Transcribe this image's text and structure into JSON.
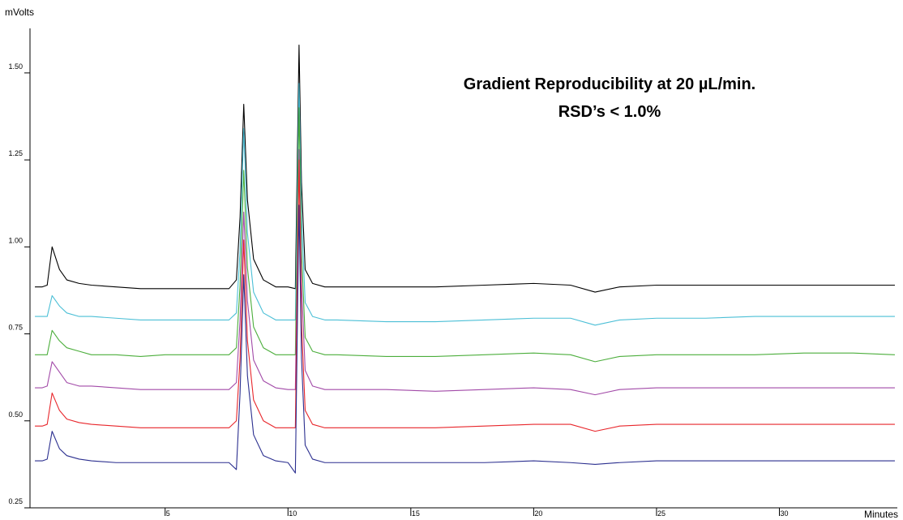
{
  "chart_data": {
    "type": "line",
    "title": "Gradient Reproducibility at 20 µL/min.",
    "subtitle": "RSD’s < 1.0%",
    "y_label": "mVolts",
    "x_label": "Minutes",
    "xlim": [
      -0.5,
      34.8
    ],
    "ylim": [
      0.25,
      1.6
    ],
    "xticks": [
      5,
      10,
      15,
      20,
      25,
      30
    ],
    "yticks": [
      {
        "value": 0.25,
        "label": "0.25"
      },
      {
        "value": 0.5,
        "label": "0.50"
      },
      {
        "value": 0.75,
        "label": "0.75"
      },
      {
        "value": 1.0,
        "label": "1.00"
      },
      {
        "value": 1.25,
        "label": "1.25"
      },
      {
        "value": 1.5,
        "label": "1.50"
      }
    ],
    "grid": false,
    "x": [
      -0.3,
      0,
      0.2,
      0.4,
      0.7,
      1,
      1.5,
      2,
      3,
      4,
      5,
      6,
      7,
      7.6,
      7.9,
      8.05,
      8.2,
      8.35,
      8.6,
      9,
      9.5,
      10,
      10.3,
      10.45,
      10.55,
      10.7,
      11,
      11.5,
      12,
      14,
      16,
      18,
      20,
      21.5,
      22.5,
      23.5,
      25,
      27,
      29,
      31,
      33,
      34.7
    ],
    "series": [
      {
        "color": "#000000",
        "values": [
          0.885,
          0.885,
          0.89,
          1.0,
          0.935,
          0.905,
          0.895,
          0.89,
          0.885,
          0.88,
          0.88,
          0.88,
          0.88,
          0.88,
          0.905,
          1.085,
          1.41,
          1.135,
          0.965,
          0.905,
          0.885,
          0.885,
          0.88,
          1.58,
          1.185,
          0.935,
          0.895,
          0.885,
          0.885,
          0.885,
          0.885,
          0.89,
          0.895,
          0.89,
          0.87,
          0.885,
          0.89,
          0.89,
          0.89,
          0.89,
          0.89,
          0.89
        ]
      },
      {
        "color": "#4bbfd6",
        "values": [
          0.8,
          0.8,
          0.8,
          0.86,
          0.83,
          0.81,
          0.8,
          0.8,
          0.795,
          0.79,
          0.79,
          0.79,
          0.79,
          0.79,
          0.81,
          0.99,
          1.34,
          1.04,
          0.87,
          0.81,
          0.79,
          0.79,
          0.79,
          1.47,
          1.09,
          0.84,
          0.8,
          0.79,
          0.79,
          0.785,
          0.785,
          0.79,
          0.795,
          0.795,
          0.775,
          0.79,
          0.795,
          0.795,
          0.8,
          0.8,
          0.8,
          0.8
        ]
      },
      {
        "color": "#4cae3c",
        "values": [
          0.69,
          0.69,
          0.69,
          0.76,
          0.73,
          0.71,
          0.7,
          0.69,
          0.69,
          0.685,
          0.69,
          0.69,
          0.69,
          0.69,
          0.71,
          0.89,
          1.22,
          0.94,
          0.77,
          0.71,
          0.69,
          0.69,
          0.69,
          1.4,
          0.99,
          0.74,
          0.7,
          0.69,
          0.69,
          0.685,
          0.685,
          0.69,
          0.695,
          0.69,
          0.67,
          0.685,
          0.69,
          0.69,
          0.69,
          0.695,
          0.695,
          0.69
        ]
      },
      {
        "color": "#a24aa8",
        "values": [
          0.595,
          0.595,
          0.6,
          0.67,
          0.64,
          0.61,
          0.6,
          0.6,
          0.595,
          0.59,
          0.59,
          0.59,
          0.59,
          0.59,
          0.61,
          0.79,
          1.1,
          0.845,
          0.675,
          0.615,
          0.595,
          0.59,
          0.59,
          1.28,
          0.895,
          0.645,
          0.6,
          0.59,
          0.59,
          0.59,
          0.585,
          0.59,
          0.595,
          0.59,
          0.575,
          0.59,
          0.595,
          0.595,
          0.595,
          0.595,
          0.595,
          0.595
        ]
      },
      {
        "color": "#e8262b",
        "values": [
          0.485,
          0.485,
          0.49,
          0.58,
          0.53,
          0.505,
          0.495,
          0.49,
          0.485,
          0.48,
          0.48,
          0.48,
          0.48,
          0.48,
          0.5,
          0.68,
          1.02,
          0.73,
          0.56,
          0.5,
          0.48,
          0.48,
          0.48,
          1.25,
          0.78,
          0.53,
          0.49,
          0.48,
          0.48,
          0.48,
          0.48,
          0.485,
          0.49,
          0.49,
          0.47,
          0.485,
          0.49,
          0.49,
          0.49,
          0.49,
          0.49,
          0.49
        ]
      },
      {
        "color": "#2b2f8f",
        "values": [
          0.385,
          0.385,
          0.39,
          0.47,
          0.42,
          0.4,
          0.39,
          0.385,
          0.38,
          0.38,
          0.38,
          0.38,
          0.38,
          0.38,
          0.36,
          0.58,
          0.92,
          0.63,
          0.46,
          0.4,
          0.385,
          0.38,
          0.35,
          1.12,
          0.68,
          0.43,
          0.39,
          0.38,
          0.38,
          0.38,
          0.38,
          0.38,
          0.385,
          0.38,
          0.375,
          0.38,
          0.385,
          0.385,
          0.385,
          0.385,
          0.385,
          0.385
        ]
      }
    ]
  }
}
